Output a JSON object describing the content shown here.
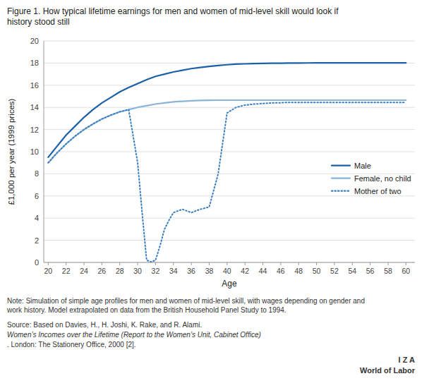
{
  "chart_data": {
    "type": "line",
    "title": "Figure 1. How typical lifetime earnings for men and women of mid-level skill would look if\nhistory stood still",
    "x_label": "Age",
    "y_label": "£1,000 per year (1999 prices)",
    "annotations": [
      "Note: Simulation of simple age profiles for men and women of mid-level skill, with wages depending on gender and\nwork history. Model extrapolated on data from the British Household Panel Study to 1994.",
      "Source: Based on Davies, H., H. Joshi, K. Rake, and R. Alami. ",
      "Women’s Incomes over the Lifetime (Report to the Women’s Unit, Cabinet Office)",
      ". London: The Stationery Office, 2000 [2].",
      "I  Z  A",
      "World of Labor"
    ],
    "xlim": [
      19.5,
      61
    ],
    "ylim": [
      0,
      20
    ],
    "xticks": [
      20,
      22,
      24,
      26,
      28,
      30,
      32,
      34,
      36,
      38,
      40,
      42,
      44,
      46,
      48,
      50,
      52,
      54,
      56,
      58,
      60
    ],
    "yticks": [
      0,
      2,
      4,
      6,
      8,
      10,
      12,
      14,
      16,
      18,
      20
    ],
    "grid": true,
    "legend": "right",
    "series": [
      {
        "name": "Male",
        "color": "#1a5fa8",
        "line_style": "solid",
        "x": [
          20,
          21,
          22,
          23,
          24,
          25,
          26,
          27,
          28,
          29,
          30,
          31,
          32,
          33,
          34,
          35,
          36,
          37,
          38,
          39,
          40,
          41,
          42,
          43,
          44,
          45,
          46,
          47,
          48,
          49,
          50,
          51,
          52,
          53,
          54,
          55,
          56,
          57,
          58,
          59,
          60
        ],
        "values": [
          9.5,
          10.5,
          11.5,
          12.3,
          13.1,
          13.8,
          14.4,
          14.9,
          15.4,
          15.8,
          16.15,
          16.5,
          16.8,
          17.0,
          17.2,
          17.35,
          17.5,
          17.6,
          17.7,
          17.78,
          17.85,
          17.9,
          17.93,
          17.95,
          17.97,
          17.98,
          17.99,
          18.0,
          18.0,
          18.01,
          18.02,
          18.02,
          18.02,
          18.02,
          18.02,
          18.02,
          18.02,
          18.02,
          18.02,
          18.02,
          18.02
        ]
      },
      {
        "name": "Female, no child",
        "color": "#8ab4d8",
        "line_style": "solid",
        "x": [
          20,
          21,
          22,
          23,
          24,
          25,
          26,
          27,
          28,
          29,
          30,
          31,
          32,
          33,
          34,
          35,
          36,
          37,
          38,
          39,
          40,
          41,
          42,
          43,
          44,
          45,
          46,
          47,
          48,
          49,
          50,
          51,
          52,
          53,
          54,
          55,
          56,
          57,
          58,
          59,
          60
        ],
        "values": [
          9.0,
          9.9,
          10.7,
          11.4,
          12.0,
          12.5,
          12.95,
          13.3,
          13.6,
          13.8,
          14.0,
          14.15,
          14.3,
          14.4,
          14.5,
          14.55,
          14.6,
          14.62,
          14.64,
          14.65,
          14.65,
          14.65,
          14.65,
          14.65,
          14.65,
          14.65,
          14.65,
          14.65,
          14.65,
          14.65,
          14.65,
          14.65,
          14.65,
          14.65,
          14.65,
          14.65,
          14.65,
          14.65,
          14.65,
          14.65,
          14.65
        ]
      },
      {
        "name": "Mother of two",
        "color": "#3a7fc1",
        "line_style": "dotted",
        "x": [
          20,
          21,
          22,
          23,
          24,
          25,
          26,
          27,
          28,
          29,
          30,
          30.5,
          31,
          31.5,
          32,
          32.5,
          33,
          33.5,
          34,
          35,
          36,
          37,
          38,
          39,
          40,
          41,
          42,
          43,
          44,
          45,
          46,
          47,
          48,
          49,
          50,
          51,
          52,
          53,
          54,
          55,
          56,
          57,
          58,
          59,
          60
        ],
        "values": [
          9.0,
          9.9,
          10.7,
          11.4,
          12.0,
          12.5,
          12.95,
          13.3,
          13.6,
          13.8,
          9.0,
          4.5,
          0.2,
          0.05,
          0.2,
          1.5,
          3.0,
          3.8,
          4.5,
          4.8,
          4.5,
          4.8,
          5.0,
          8.0,
          13.5,
          14.0,
          14.2,
          14.3,
          14.35,
          14.4,
          14.42,
          14.45,
          14.45,
          14.45,
          14.45,
          14.45,
          14.45,
          14.45,
          14.45,
          14.45,
          14.45,
          14.45,
          14.45,
          14.45,
          14.45
        ]
      }
    ]
  }
}
